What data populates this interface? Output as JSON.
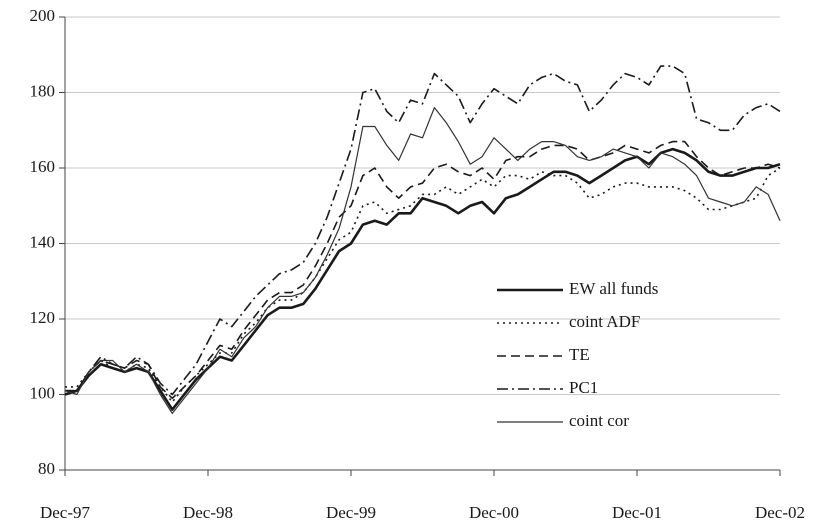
{
  "chart_data": {
    "type": "line",
    "categories": [
      "Dec-97",
      null,
      null,
      null,
      null,
      null,
      null,
      null,
      null,
      null,
      null,
      null,
      "Dec-98",
      null,
      null,
      null,
      null,
      null,
      null,
      null,
      null,
      null,
      null,
      null,
      "Dec-99",
      null,
      null,
      null,
      null,
      null,
      null,
      null,
      null,
      null,
      null,
      null,
      "Dec-00",
      null,
      null,
      null,
      null,
      null,
      null,
      null,
      null,
      null,
      null,
      null,
      "Dec-01",
      null,
      null,
      null,
      null,
      null,
      null,
      null,
      null,
      null,
      null,
      null,
      "Dec-02"
    ],
    "ylim": [
      80,
      200
    ],
    "yticks": [
      80,
      100,
      120,
      140,
      160,
      180,
      200
    ],
    "grid": true,
    "legend": "lower right",
    "series": [
      {
        "name": "EW all funds",
        "color": "#1a1a1a",
        "dash": "solid",
        "width": 2.6,
        "values": [
          100,
          101,
          105,
          108,
          107,
          106,
          107,
          106,
          101,
          96,
          100,
          104,
          107,
          110,
          109,
          113,
          117,
          121,
          123,
          123,
          124,
          128,
          133,
          138,
          140,
          145,
          146,
          145,
          148,
          148,
          152,
          151,
          150,
          148,
          150,
          151,
          148,
          152,
          153,
          155,
          157,
          159,
          159,
          158,
          156,
          158,
          160,
          162,
          163,
          161,
          164,
          165,
          164,
          162,
          159,
          158,
          158,
          159,
          160,
          160,
          161
        ]
      },
      {
        "name": "coint ADF",
        "color": "#1a1a1a",
        "dash": "dotted",
        "width": 1.6,
        "values": [
          102,
          102,
          106,
          109,
          107,
          106,
          108,
          107,
          102,
          98,
          102,
          105,
          108,
          111,
          111,
          116,
          119,
          123,
          125,
          125,
          127,
          131,
          136,
          141,
          143,
          150,
          151,
          148,
          149,
          150,
          153,
          153,
          155,
          153,
          155,
          157,
          155,
          158,
          158,
          157,
          159,
          158,
          158,
          156,
          152,
          153,
          155,
          156,
          156,
          155,
          155,
          155,
          154,
          152,
          149,
          149,
          150,
          151,
          152,
          158,
          160
        ]
      },
      {
        "name": "TE",
        "color": "#1a1a1a",
        "dash": "dashed",
        "width": 1.6,
        "values": [
          101,
          101,
          106,
          109,
          108,
          107,
          109,
          108,
          102,
          99,
          102,
          105,
          109,
          113,
          112,
          117,
          121,
          125,
          127,
          127,
          129,
          134,
          140,
          147,
          150,
          158,
          160,
          155,
          152,
          155,
          156,
          160,
          161,
          159,
          158,
          160,
          157,
          162,
          163,
          163,
          165,
          166,
          166,
          165,
          162,
          163,
          164,
          166,
          165,
          164,
          166,
          167,
          167,
          163,
          160,
          158,
          159,
          160,
          160,
          161,
          160
        ]
      },
      {
        "name": "PC1",
        "color": "#1a1a1a",
        "dash": "dashdot",
        "width": 1.6,
        "values": [
          101,
          101,
          106,
          110,
          108,
          107,
          110,
          108,
          103,
          100,
          104,
          108,
          114,
          120,
          118,
          122,
          126,
          129,
          132,
          133,
          135,
          140,
          147,
          156,
          165,
          180,
          181,
          175,
          172,
          178,
          177,
          185,
          182,
          179,
          172,
          177,
          181,
          179,
          177,
          182,
          184,
          185,
          183,
          182,
          175,
          178,
          182,
          185,
          184,
          182,
          187,
          187,
          185,
          173,
          172,
          170,
          170,
          174,
          176,
          177,
          175
        ]
      },
      {
        "name": "coint cor",
        "color": "#333333",
        "dash": "solid",
        "width": 1.2,
        "values": [
          101,
          100,
          106,
          109,
          109,
          106,
          108,
          106,
          100,
          95,
          99,
          103,
          107,
          112,
          110,
          115,
          118,
          123,
          126,
          126,
          127,
          131,
          137,
          144,
          155,
          171,
          171,
          166,
          162,
          169,
          168,
          176,
          172,
          167,
          161,
          163,
          168,
          165,
          162,
          165,
          167,
          167,
          166,
          163,
          162,
          163,
          165,
          164,
          163,
          160,
          164,
          163,
          161,
          158,
          152,
          151,
          150,
          151,
          155,
          153,
          146
        ]
      }
    ]
  }
}
